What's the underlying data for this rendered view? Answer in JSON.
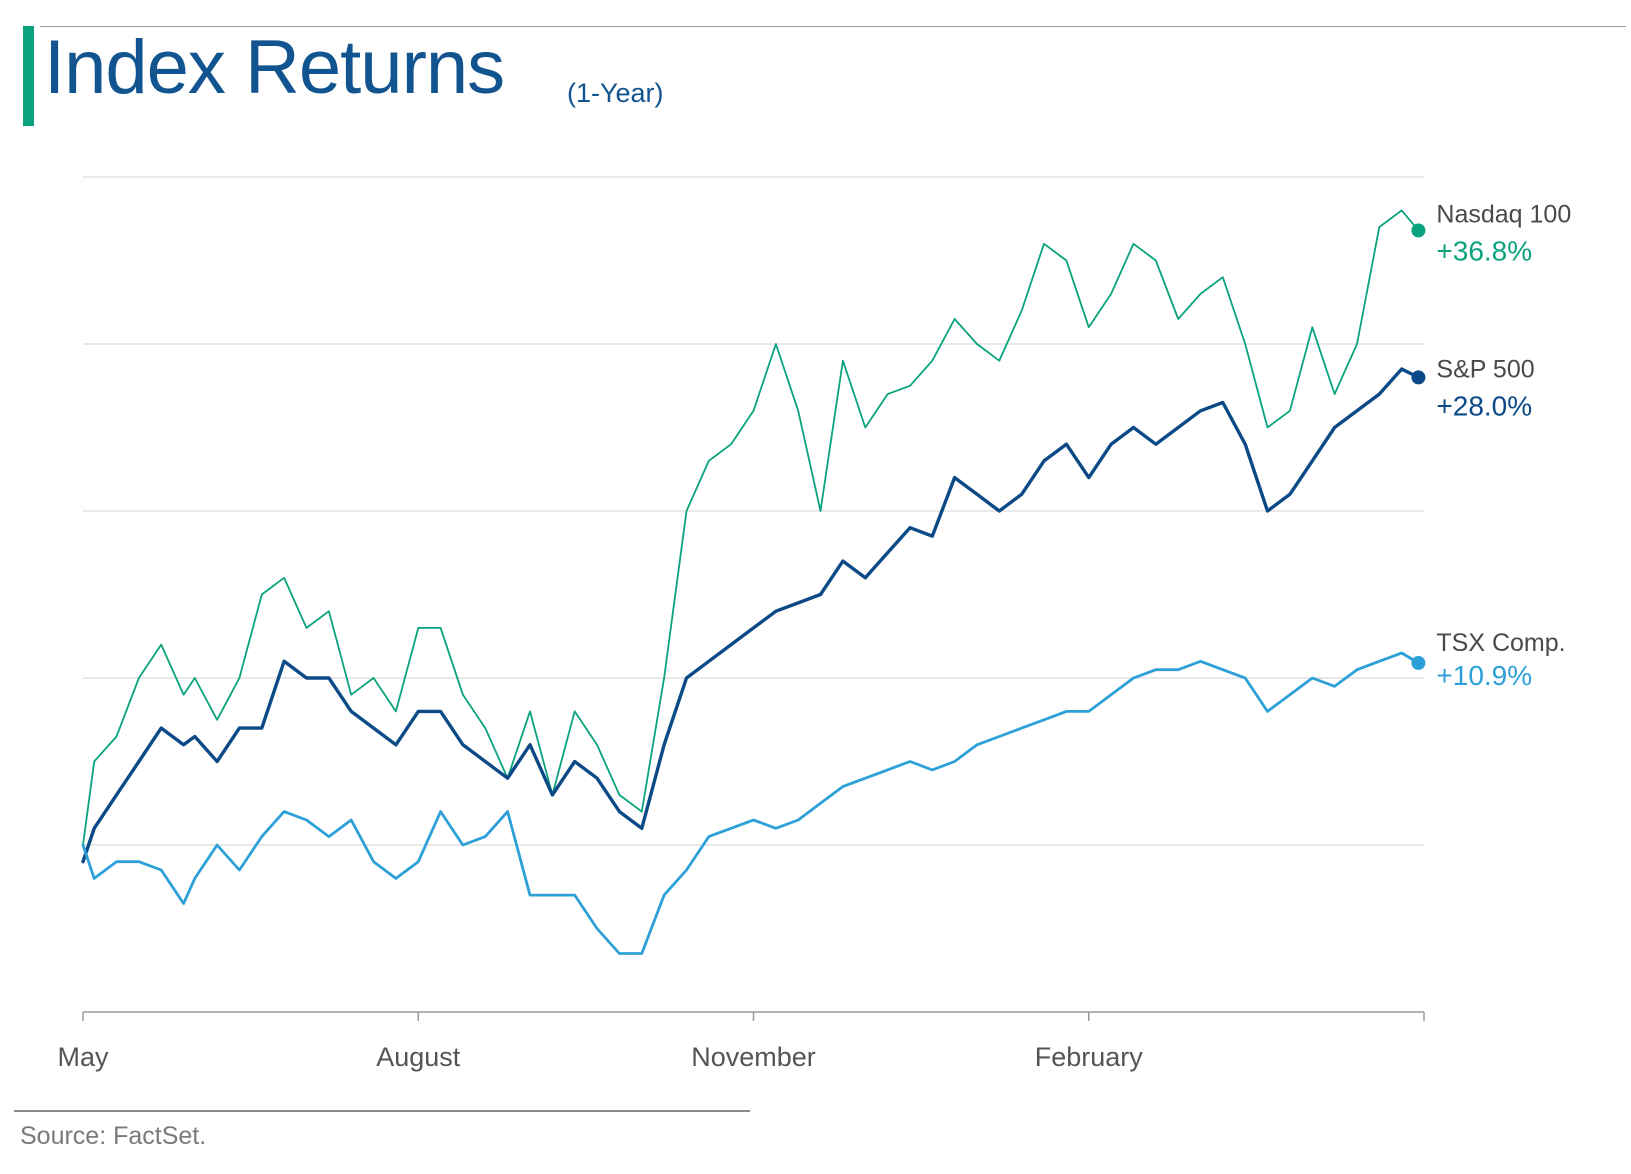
{
  "header": {
    "title": "Index Returns",
    "subtitle": "(1-Year)"
  },
  "colors": {
    "accent": "#0aa37e",
    "title": "#12548f",
    "grid": "#dcdcdc",
    "axis": "#9a9a9a",
    "tick_label": "#555555",
    "series_label": "#4a4a4a"
  },
  "footer": {
    "source": "Source: FactSet."
  },
  "chart_data": {
    "type": "line",
    "title": "Index Returns",
    "subtitle": "(1-Year)",
    "xlabel": "",
    "ylabel": "",
    "x_range": [
      0,
      12
    ],
    "x_ticks": [
      {
        "x": 0,
        "label": "May"
      },
      {
        "x": 3,
        "label": "August"
      },
      {
        "x": 6,
        "label": "November"
      },
      {
        "x": 9,
        "label": "February"
      },
      {
        "x": 12,
        "label": ""
      }
    ],
    "y_range": [
      -10,
      40
    ],
    "y_gridlines": [
      -10,
      0,
      10,
      20,
      30,
      40
    ],
    "y_tick_labels_shown": false,
    "grid": true,
    "legend": "direct labels at line ends (right)",
    "series": [
      {
        "name": "Nasdaq 100",
        "end_label": "+36.8%",
        "color": "#0aa37e",
        "stroke": "thin",
        "x": [
          0,
          0.1,
          0.3,
          0.5,
          0.7,
          0.9,
          1.0,
          1.2,
          1.4,
          1.6,
          1.8,
          2.0,
          2.2,
          2.4,
          2.6,
          2.8,
          3.0,
          3.2,
          3.4,
          3.6,
          3.8,
          4.0,
          4.2,
          4.4,
          4.6,
          4.8,
          5.0,
          5.2,
          5.4,
          5.6,
          5.8,
          6.0,
          6.2,
          6.4,
          6.6,
          6.8,
          7.0,
          7.2,
          7.4,
          7.6,
          7.8,
          8.0,
          8.2,
          8.4,
          8.6,
          8.8,
          9.0,
          9.2,
          9.4,
          9.6,
          9.8,
          10.0,
          10.2,
          10.4,
          10.6,
          10.8,
          11.0,
          11.2,
          11.4,
          11.6,
          11.8,
          11.95
        ],
        "y": [
          0,
          5,
          6.5,
          10,
          12,
          9,
          10,
          7.5,
          10,
          15,
          16,
          13,
          14,
          9,
          10,
          8,
          13,
          13,
          9,
          7,
          4,
          8,
          3,
          8,
          6,
          3,
          2,
          10,
          20,
          23,
          24,
          26,
          30,
          26,
          20,
          29,
          25,
          27,
          27.5,
          29,
          31.5,
          30,
          29,
          32,
          36,
          35,
          31,
          33,
          36,
          35,
          31.5,
          33,
          34,
          30,
          25,
          26,
          31,
          27,
          30,
          37,
          38,
          36.8
        ]
      },
      {
        "name": "S&P 500",
        "end_label": "+28.0%",
        "color": "#0b4a86",
        "stroke": "thick",
        "x": [
          0,
          0.1,
          0.3,
          0.5,
          0.7,
          0.9,
          1.0,
          1.2,
          1.4,
          1.6,
          1.8,
          2.0,
          2.2,
          2.4,
          2.6,
          2.8,
          3.0,
          3.2,
          3.4,
          3.6,
          3.8,
          4.0,
          4.2,
          4.4,
          4.6,
          4.8,
          5.0,
          5.2,
          5.4,
          5.6,
          5.8,
          6.0,
          6.2,
          6.4,
          6.6,
          6.8,
          7.0,
          7.2,
          7.4,
          7.6,
          7.8,
          8.0,
          8.2,
          8.4,
          8.6,
          8.8,
          9.0,
          9.2,
          9.4,
          9.6,
          9.8,
          10.0,
          10.2,
          10.4,
          10.6,
          10.8,
          11.0,
          11.2,
          11.4,
          11.6,
          11.8,
          11.95
        ],
        "y": [
          -1,
          1,
          3,
          5,
          7,
          6,
          6.5,
          5,
          7,
          7,
          11,
          10,
          10,
          8,
          7,
          6,
          8,
          8,
          6,
          5,
          4,
          6,
          3,
          5,
          4,
          2,
          1,
          6,
          10,
          11,
          12,
          13,
          14,
          14.5,
          15,
          17,
          16,
          17.5,
          19,
          18.5,
          22,
          21,
          20,
          21,
          23,
          24,
          22,
          24,
          25,
          24,
          25,
          26,
          26.5,
          24,
          20,
          21,
          23,
          25,
          26,
          27,
          28.5,
          28
        ]
      },
      {
        "name": "TSX Comp.",
        "end_label": "+10.9%",
        "color": "#2ea0d8",
        "stroke": "medium",
        "x": [
          0,
          0.1,
          0.3,
          0.5,
          0.7,
          0.9,
          1.0,
          1.2,
          1.4,
          1.6,
          1.8,
          2.0,
          2.2,
          2.4,
          2.6,
          2.8,
          3.0,
          3.2,
          3.4,
          3.6,
          3.8,
          4.0,
          4.2,
          4.4,
          4.6,
          4.8,
          5.0,
          5.2,
          5.4,
          5.6,
          5.8,
          6.0,
          6.2,
          6.4,
          6.6,
          6.8,
          7.0,
          7.2,
          7.4,
          7.6,
          7.8,
          8.0,
          8.2,
          8.4,
          8.6,
          8.8,
          9.0,
          9.2,
          9.4,
          9.6,
          9.8,
          10.0,
          10.2,
          10.4,
          10.6,
          10.8,
          11.0,
          11.2,
          11.4,
          11.6,
          11.8,
          11.95
        ],
        "y": [
          0,
          -2,
          -1,
          -1,
          -1.5,
          -3.5,
          -2,
          0,
          -1.5,
          0.5,
          2,
          1.5,
          0.5,
          1.5,
          -1,
          -2,
          -1,
          2,
          0,
          0.5,
          2,
          -3,
          -3,
          -3,
          -5,
          -6.5,
          -6.5,
          -3,
          -1.5,
          0.5,
          1,
          1.5,
          1,
          1.5,
          2.5,
          3.5,
          4,
          4.5,
          5,
          4.5,
          5,
          6,
          6.5,
          7,
          7.5,
          8,
          8,
          9,
          10,
          10.5,
          10.5,
          11,
          10.5,
          10,
          8,
          9,
          10,
          9.5,
          10.5,
          11,
          11.5,
          10.9
        ]
      }
    ]
  }
}
